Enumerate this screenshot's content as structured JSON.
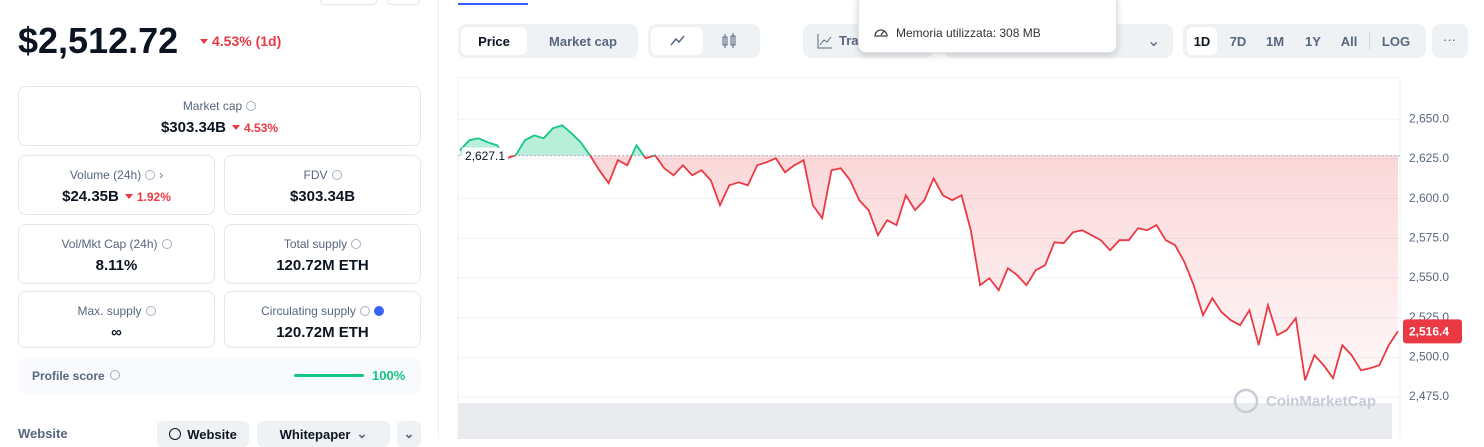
{
  "header": {
    "price": "$2,512.72",
    "change": "4.53% (1d)"
  },
  "stats": {
    "market_cap": {
      "label": "Market cap",
      "value": "$303.34B",
      "change": "4.53%"
    },
    "volume": {
      "label": "Volume (24h)",
      "value": "$24.35B",
      "change": "1.92%"
    },
    "fdv": {
      "label": "FDV",
      "value": "$303.34B"
    },
    "vol_mkt": {
      "label": "Vol/Mkt Cap (24h)",
      "value": "8.11%"
    },
    "total_supply": {
      "label": "Total supply",
      "value": "120.72M ETH"
    },
    "max_supply": {
      "label": "Max. supply",
      "value": "∞"
    },
    "circulating": {
      "label": "Circulating supply",
      "value": "120.72M ETH"
    }
  },
  "profile": {
    "label": "Profile score",
    "value": "100%"
  },
  "links": {
    "label": "Website",
    "buttons": [
      "Website",
      "Whitepaper"
    ]
  },
  "toolbar": {
    "tabs": [
      "Price",
      "Market cap"
    ],
    "trading": "Tra",
    "ranges": [
      "1D",
      "7D",
      "1M",
      "1Y",
      "All",
      "LOG"
    ],
    "more": "···"
  },
  "tooltip": "Memoria utilizzata: 308 MB",
  "price_chart": {
    "type": "line",
    "values": [
      2630.5,
      2636.8,
      2638.0,
      2635.5,
      2633.6,
      2625.4,
      2627.3,
      2636.8,
      2639.9,
      2638.0,
      2644.3,
      2646.2,
      2641.2,
      2635.5,
      2627.3,
      2617.9,
      2609.7,
      2624.2,
      2621.0,
      2633.6,
      2625.4,
      2627.3,
      2619.1,
      2614.7,
      2621.0,
      2614.7,
      2617.9,
      2611.6,
      2595.8,
      2608.4,
      2610.3,
      2608.4,
      2621.0,
      2622.9,
      2625.4,
      2616.6,
      2621.0,
      2624.2,
      2595.8,
      2587.7,
      2617.9,
      2619.1,
      2611.6,
      2599.0,
      2592.7,
      2577.0,
      2586.4,
      2583.3,
      2602.1,
      2592.7,
      2599.0,
      2612.8,
      2602.1,
      2599.0,
      2602.1,
      2580.1,
      2545.5,
      2549.9,
      2542.3,
      2556.2,
      2551.8,
      2545.5,
      2554.9,
      2558.1,
      2572.5,
      2571.9,
      2578.8,
      2580.1,
      2577.0,
      2573.8,
      2567.5,
      2573.8,
      2573.8,
      2581.4,
      2580.1,
      2583.3,
      2573.8,
      2570.7,
      2560.0,
      2545.5,
      2526.6,
      2537.3,
      2528.5,
      2523.4,
      2520.3,
      2529.7,
      2507.7,
      2532.9,
      2514.0,
      2517.1,
      2524.7,
      2485.6,
      2501.4,
      2495.1,
      2486.9,
      2507.7,
      2501.4,
      2491.9,
      2493.2,
      2495.1,
      2507.7,
      2516.4
    ],
    "ylim": [
      2470,
      2676
    ],
    "yticks": [
      {
        "value": 2475,
        "label": "2,475.0"
      },
      {
        "value": 2500,
        "label": "2,500.0"
      },
      {
        "value": 2525,
        "label": "2,525.0"
      },
      {
        "value": 2550,
        "label": "2,550.0"
      },
      {
        "value": 2575,
        "label": "2,575.0"
      },
      {
        "value": 2600,
        "label": "2,600.0"
      },
      {
        "value": 2625,
        "label": "2,625.0"
      },
      {
        "value": 2650,
        "label": "2,650.0"
      }
    ],
    "grid": true,
    "reference": {
      "value": 2627.1,
      "label": "2,627.1"
    },
    "last_price_label": "2,516.4",
    "watermark": "CoinMarketCap",
    "up_color": "#16c784",
    "down_color": "#ea3943"
  }
}
